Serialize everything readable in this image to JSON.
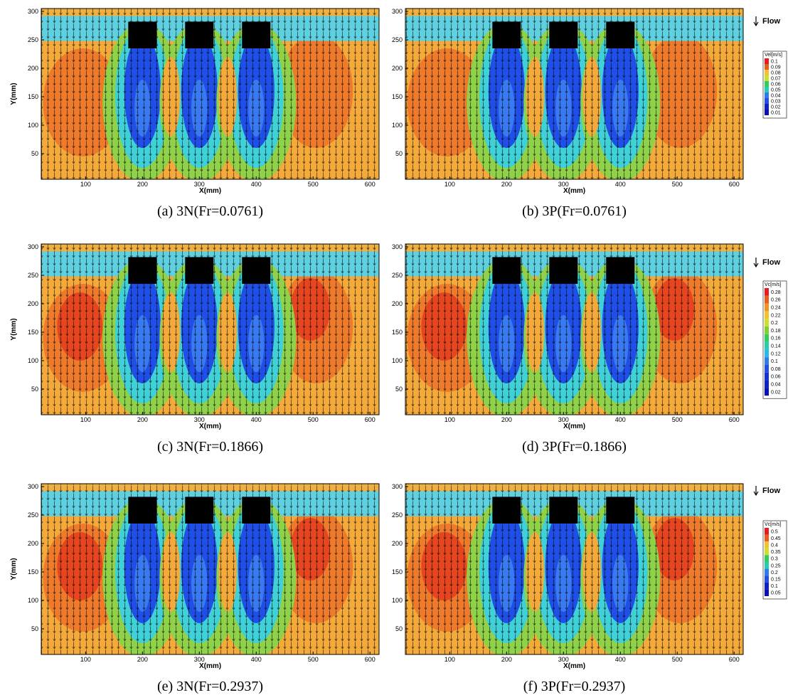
{
  "panels": [
    {
      "caption": "(a) 3N(Fr=0.0761)",
      "x_label": "X(mm)",
      "y_label": "Y(mm)",
      "xticks": [
        100,
        200,
        300,
        400,
        500,
        600
      ],
      "yticks": [
        50,
        100,
        150,
        200,
        250,
        300
      ],
      "xlim": [
        22,
        616
      ],
      "ylim": [
        5,
        305
      ]
    },
    {
      "caption": "(b) 3P(Fr=0.0761)",
      "x_label": "X(mm)",
      "xticks": [
        100,
        200,
        300,
        400,
        500,
        600
      ],
      "yticks": [
        50,
        100,
        150,
        200,
        250,
        300
      ],
      "xlim": [
        22,
        616
      ],
      "ylim": [
        5,
        305
      ]
    },
    {
      "caption": "(c) 3N(Fr=0.1866)",
      "x_label": "X(mm)",
      "y_label": "Y(mm)",
      "xticks": [
        100,
        200,
        300,
        400,
        500,
        600
      ],
      "yticks": [
        50,
        100,
        150,
        200,
        250,
        300
      ],
      "xlim": [
        22,
        616
      ],
      "ylim": [
        5,
        305
      ]
    },
    {
      "caption": "(d) 3P(Fr=0.1866)",
      "x_label": "X(mm)",
      "xticks": [
        100,
        200,
        300,
        400,
        500,
        600
      ],
      "yticks": [
        50,
        100,
        150,
        200,
        250,
        300
      ],
      "xlim": [
        22,
        616
      ],
      "ylim": [
        5,
        305
      ]
    },
    {
      "caption": "(e) 3N(Fr=0.2937)",
      "x_label": "X(mm)",
      "y_label": "Y(mm)",
      "xticks": [
        100,
        200,
        300,
        400,
        500,
        600
      ],
      "yticks": [
        50,
        100,
        150,
        200,
        250,
        300
      ],
      "xlim": [
        22,
        616
      ],
      "ylim": [
        5,
        305
      ]
    },
    {
      "caption": "(f) 3P(Fr=0.2937)",
      "x_label": "X(mm)",
      "xticks": [
        100,
        200,
        300,
        400,
        500,
        600
      ],
      "yticks": [
        50,
        100,
        150,
        200,
        250,
        300
      ],
      "xlim": [
        22,
        616
      ],
      "ylim": [
        5,
        305
      ]
    }
  ],
  "legends": [
    {
      "flow": "Flow",
      "title": "Vel[m/s]",
      "levels": [
        0.1,
        0.09,
        0.08,
        0.07,
        0.06,
        0.05,
        0.04,
        0.03,
        0.02,
        0.01
      ]
    },
    {
      "flow": "Flow",
      "title": "Vc[m/s]",
      "levels": [
        0.28,
        0.26,
        0.24,
        0.22,
        0.2,
        0.18,
        0.16,
        0.14,
        0.12,
        0.1,
        0.08,
        0.06,
        0.04,
        0.02
      ]
    },
    {
      "flow": "Flow",
      "title": "Vc[m/s]",
      "levels": [
        0.5,
        0.45,
        0.4,
        0.35,
        0.3,
        0.25,
        0.2,
        0.15,
        0.1,
        0.05
      ]
    }
  ]
}
